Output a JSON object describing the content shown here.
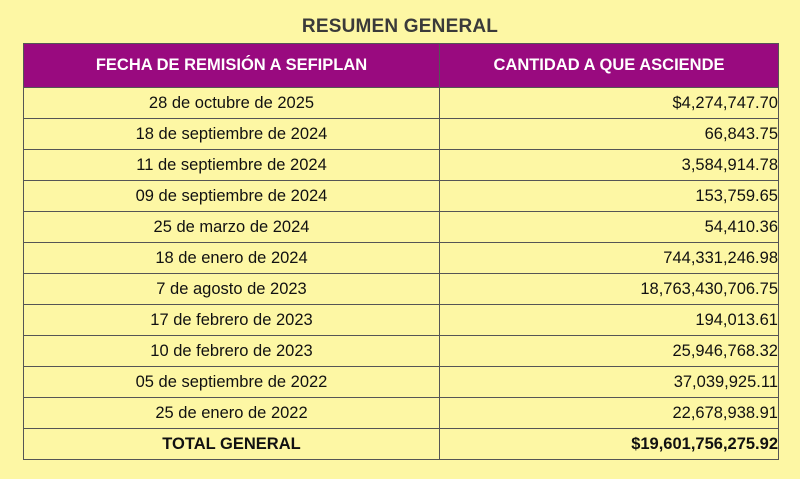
{
  "title": "RESUMEN GENERAL",
  "table": {
    "headers": [
      "FECHA DE REMISIÓN A SEFIPLAN",
      "CANTIDAD A QUE ASCIENDE"
    ],
    "rows": [
      {
        "date": "28 de octubre de 2025",
        "amount": "$4,274,747.70"
      },
      {
        "date": "18 de septiembre de 2024",
        "amount": "66,843.75"
      },
      {
        "date": "11 de septiembre de 2024",
        "amount": "3,584,914.78"
      },
      {
        "date": "09 de septiembre de 2024",
        "amount": "153,759.65"
      },
      {
        "date": "25 de marzo de 2024",
        "amount": "54,410.36"
      },
      {
        "date": "18 de enero de 2024",
        "amount": "744,331,246.98"
      },
      {
        "date": "7 de agosto de 2023",
        "amount": "18,763,430,706.75"
      },
      {
        "date": "17 de febrero de 2023",
        "amount": "194,013.61"
      },
      {
        "date": "10 de febrero de 2023",
        "amount": "25,946,768.32"
      },
      {
        "date": "05 de septiembre de 2022",
        "amount": "37,039,925.11"
      },
      {
        "date": "25 de enero de 2022",
        "amount": "22,678,938.91"
      }
    ],
    "total": {
      "label": "TOTAL GENERAL",
      "amount": "$19,601,756,275.92"
    }
  },
  "colors": {
    "page_background": "#fdf7a4",
    "header_background": "#990a7f",
    "header_text": "#ffffff"
  }
}
